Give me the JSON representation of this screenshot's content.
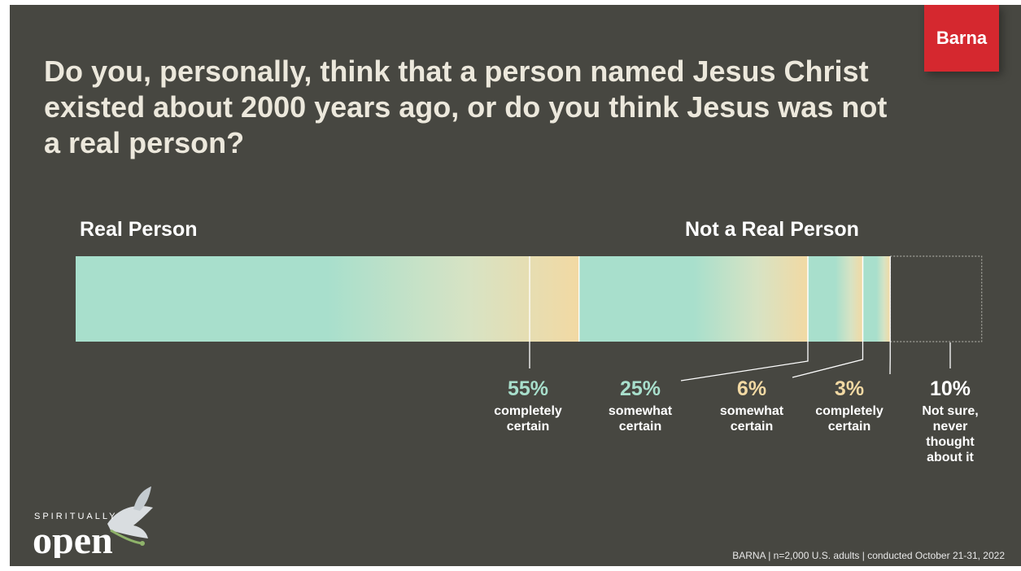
{
  "brand": {
    "logo_text": "Barna"
  },
  "title": "Do you, personally, think that a person named Jesus Christ existed about 2000 years ago, or do you think Jesus was not a real person?",
  "left_label": "Real Person",
  "right_label": "Not a Real Person",
  "chart_data": {
    "type": "bar",
    "orientation": "horizontal",
    "stacked": true,
    "categories": [
      "Jesus Christ"
    ],
    "series": [
      {
        "value_label": "55%",
        "label": "completely certain",
        "value": 55,
        "group": "Real Person",
        "color": "#a8dfcc"
      },
      {
        "value_label": "25%",
        "label": "somewhat certain",
        "value": 25,
        "group": "Real Person",
        "color": "#a8dfcc"
      },
      {
        "value_label": "6%",
        "label": "somewhat certain",
        "value": 6,
        "group": "Not a Real Person",
        "color": "#f2d9a3"
      },
      {
        "value_label": "3%",
        "label": "completely certain",
        "value": 3,
        "group": "Not a Real Person",
        "color": "#f2d9a3"
      },
      {
        "value_label": "10%",
        "label": "Not sure, never thought about it",
        "value": 10,
        "group": "Not sure",
        "color": "#ffffff"
      }
    ],
    "xlim": [
      0,
      100
    ]
  },
  "footer": {
    "source": "BARNA | n=2,000 U.S. adults | conducted October 21-31, 2022",
    "tagline_top": "SPIRITUALLY",
    "tagline_bottom": "open"
  }
}
